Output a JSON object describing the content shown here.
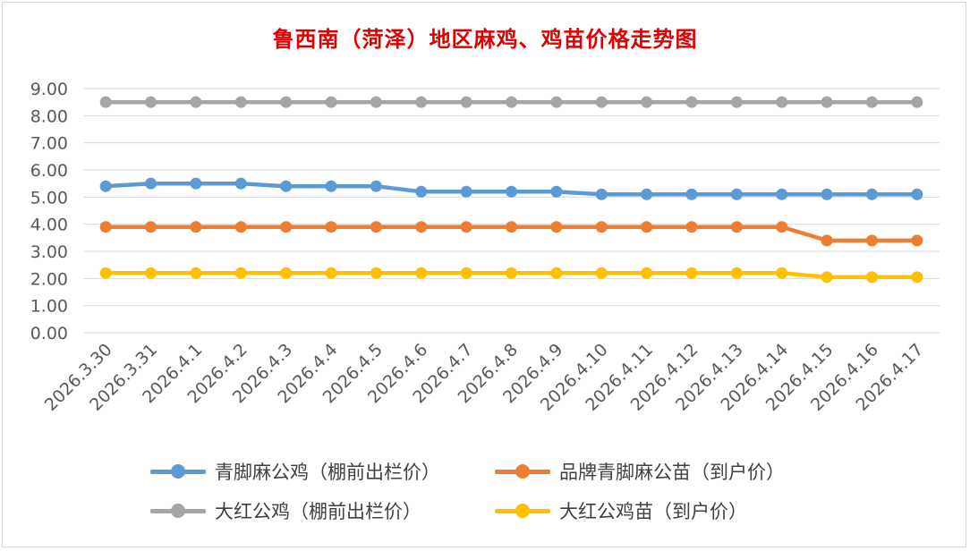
{
  "chart_data": {
    "type": "line",
    "title": "鲁西南（菏泽）地区麻鸡、鸡苗价格走势图",
    "categories": [
      "2026.3.30",
      "2026.3.31",
      "2026.4.1",
      "2026.4.2",
      "2026.4.3",
      "2026.4.4",
      "2026.4.5",
      "2026.4.6",
      "2026.4.7",
      "2026.4.8",
      "2026.4.9",
      "2026.4.10",
      "2026.4.11",
      "2026.4.12",
      "2026.4.13",
      "2026.4.14",
      "2026.4.15",
      "2026.4.16",
      "2026.4.17"
    ],
    "ylim": [
      0,
      9
    ],
    "yticks": [
      "0.00",
      "1.00",
      "2.00",
      "3.00",
      "4.00",
      "5.00",
      "6.00",
      "7.00",
      "8.00",
      "9.00"
    ],
    "grid": true,
    "legend_position": "bottom",
    "series": [
      {
        "name": "青脚麻公鸡（棚前出栏价）",
        "color": "#5b9bd5",
        "values": [
          5.4,
          5.5,
          5.5,
          5.5,
          5.4,
          5.4,
          5.4,
          5.2,
          5.2,
          5.2,
          5.2,
          5.1,
          5.1,
          5.1,
          5.1,
          5.1,
          5.1,
          5.1,
          5.1
        ]
      },
      {
        "name": "品牌青脚麻公苗（到户价）",
        "color": "#ed7d31",
        "values": [
          3.9,
          3.9,
          3.9,
          3.9,
          3.9,
          3.9,
          3.9,
          3.9,
          3.9,
          3.9,
          3.9,
          3.9,
          3.9,
          3.9,
          3.9,
          3.9,
          3.4,
          3.4,
          3.4
        ]
      },
      {
        "name": "大红公鸡（棚前出栏价）",
        "color": "#a5a5a5",
        "values": [
          8.5,
          8.5,
          8.5,
          8.5,
          8.5,
          8.5,
          8.5,
          8.5,
          8.5,
          8.5,
          8.5,
          8.5,
          8.5,
          8.5,
          8.5,
          8.5,
          8.5,
          8.5,
          8.5
        ]
      },
      {
        "name": "大红公鸡苗（到户价）",
        "color": "#ffc000",
        "values": [
          2.2,
          2.2,
          2.2,
          2.2,
          2.2,
          2.2,
          2.2,
          2.2,
          2.2,
          2.2,
          2.2,
          2.2,
          2.2,
          2.2,
          2.2,
          2.2,
          2.05,
          2.05,
          2.05
        ]
      }
    ]
  }
}
